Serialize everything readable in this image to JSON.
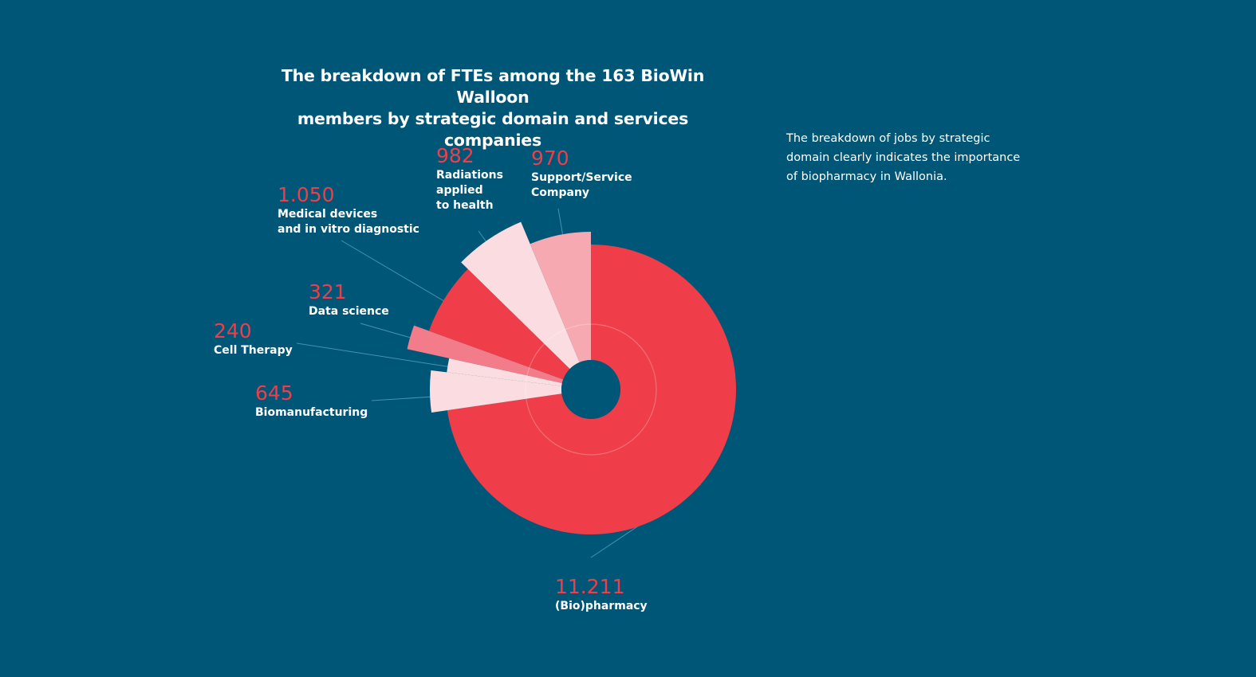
{
  "title_lines": [
    "The breakdown of FTEs among the 163 BioWin Walloon",
    "members by strategic domain and services companies"
  ],
  "note_lines": [
    "The breakdown of jobs by strategic",
    "domain clearly indicates the importance",
    "of biopharmacy in Wallonia."
  ],
  "colors": {
    "background": "#005677",
    "biopharmacy": "#ef3e4a",
    "accent_value": "#ef3e4a",
    "light_pink": "#fbdde1",
    "mid_pink": "#f7a9b1",
    "rose": "#f27c89"
  },
  "chart_data": {
    "type": "pie",
    "title": "The breakdown of FTEs among the 163 BioWin Walloon members by strategic domain and services companies",
    "slices": [
      {
        "value": 11211,
        "value_label": "11.211",
        "label_lines": [
          "(Bio)pharmacy"
        ],
        "color": "#ef3e4a"
      },
      {
        "value": 645,
        "value_label": "645",
        "label_lines": [
          "Biomanufacturing"
        ],
        "color": "#fbdde1"
      },
      {
        "value": 240,
        "value_label": "240",
        "label_lines": [
          "Cell Therapy"
        ],
        "color": "#fbdde1"
      },
      {
        "value": 321,
        "value_label": "321",
        "label_lines": [
          "Data science"
        ],
        "color": "#f27c89"
      },
      {
        "value": 1050,
        "value_label": "1.050",
        "label_lines": [
          "Medical devices",
          "and in vitro diagnostic"
        ],
        "color": "#ef3e4a"
      },
      {
        "value": 982,
        "value_label": "982",
        "label_lines": [
          "Radiations",
          "applied",
          "to health"
        ],
        "color": "#fbdde1"
      },
      {
        "value": 970,
        "value_label": "970",
        "label_lines": [
          "Support/Service",
          "Company"
        ],
        "color": "#f7a9b1"
      }
    ]
  }
}
